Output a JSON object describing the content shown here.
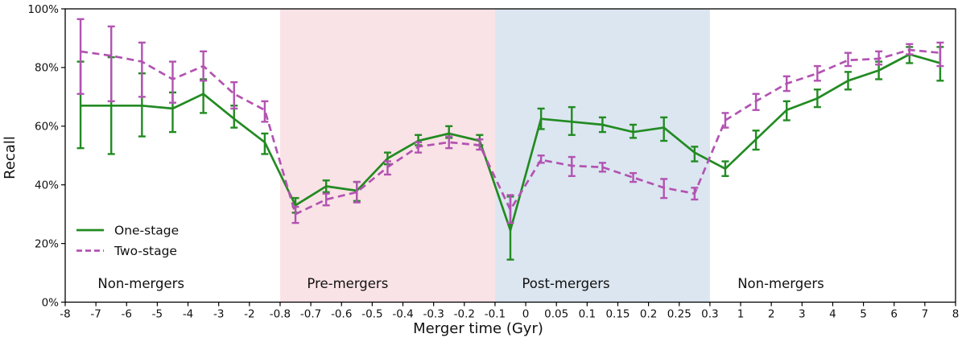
{
  "chart_data": {
    "type": "line",
    "title": "",
    "xlabel": "Merger time (Gyr)",
    "ylabel": "Recall",
    "ylim": [
      0,
      100
    ],
    "y_ticks": [
      0,
      20,
      40,
      60,
      80,
      100
    ],
    "y_tick_labels": [
      "0%",
      "20%",
      "40%",
      "60%",
      "80%",
      "100%"
    ],
    "x_tick_labels": [
      "-8",
      "-7",
      "-6",
      "-5",
      "-4",
      "-3",
      "-2",
      "-0.8",
      "-0.7",
      "-0.6",
      "-0.5",
      "-0.4",
      "-0.3",
      "-0.2",
      "-0.1",
      "0",
      "0.05",
      "0.1",
      "0.15",
      "0.2",
      "0.25",
      "0.3",
      "1",
      "2",
      "3",
      "4",
      "5",
      "6",
      "7",
      "8"
    ],
    "points_located_at": "midpoints between consecutive x ticks",
    "grid": false,
    "legend_position": "lower left, no frame",
    "regions": [
      {
        "label": "Non-mergers",
        "from_tick": 0,
        "to_tick": 7,
        "color": "#ffffff",
        "label_tick_pos": 2.47
      },
      {
        "label": "Pre-mergers",
        "from_tick": 7,
        "to_tick": 14,
        "color": "#fae3e6",
        "label_tick_pos": 9.2
      },
      {
        "label": "Post-mergers",
        "from_tick": 14,
        "to_tick": 21,
        "color": "#dce6f0",
        "label_tick_pos": 16.31
      },
      {
        "label": "Non-mergers",
        "from_tick": 21,
        "to_tick": 29,
        "color": "#ffffff",
        "label_tick_pos": 23.31
      }
    ],
    "series": [
      {
        "name": "One-stage",
        "color": "#228B22",
        "style": "solid",
        "values": [
          67,
          67,
          67,
          66,
          71,
          62.5,
          54.5,
          33,
          39.5,
          38,
          49,
          55,
          57.5,
          55,
          24.5,
          62.5,
          61.5,
          60.5,
          58,
          59.5,
          51,
          45.5,
          55.5,
          65.5,
          69.5,
          75.5,
          79,
          84.5,
          81.5
        ],
        "err_low": [
          52.5,
          50.5,
          56.5,
          58,
          64.5,
          59.5,
          50.5,
          30.5,
          37.5,
          34.5,
          47,
          53.5,
          56,
          53.5,
          14.5,
          59,
          57,
          58,
          56,
          55,
          48,
          43,
          52,
          62,
          66.5,
          72.5,
          76,
          81.5,
          75.5
        ],
        "err_high": [
          82,
          83.5,
          78,
          71.5,
          76,
          67,
          57.5,
          35.5,
          41.5,
          41,
          51,
          57,
          60,
          57,
          36,
          66,
          66.5,
          63,
          60.5,
          63,
          53,
          48,
          58.5,
          68.5,
          72.5,
          78.5,
          82,
          87,
          87
        ]
      },
      {
        "name": "Two-stage",
        "color": "#b253b2",
        "style": "dashed",
        "values": [
          85.5,
          84,
          82,
          76,
          80.5,
          71,
          65.5,
          30,
          35,
          37.5,
          46,
          53,
          54.5,
          53.5,
          31.5,
          48.5,
          46.5,
          46,
          42.5,
          39,
          37,
          62,
          68.5,
          74.5,
          78,
          82.5,
          83,
          86,
          85
        ],
        "err_low": [
          71,
          68.5,
          70,
          68,
          75.5,
          66,
          61.5,
          27,
          33,
          34,
          43.5,
          51,
          52.5,
          52,
          27,
          47.5,
          43,
          44.5,
          41,
          35.5,
          35,
          59.5,
          65.5,
          72,
          75.5,
          80.5,
          81,
          84.5,
          80.5
        ],
        "err_high": [
          96.5,
          94,
          88.5,
          82,
          85.5,
          75,
          68.5,
          32.5,
          37,
          41,
          48,
          54.5,
          56.5,
          55.5,
          36.5,
          50,
          49.5,
          47.5,
          44,
          42,
          39,
          64.5,
          71,
          77,
          80.5,
          85,
          85.5,
          88,
          88.5
        ]
      }
    ],
    "legend": {
      "items": [
        {
          "label": "One-stage",
          "color": "#228B22",
          "style": "solid"
        },
        {
          "label": "Two-stage",
          "color": "#b253b2",
          "style": "dashed"
        }
      ]
    },
    "colors": {
      "one_stage": "#228B22",
      "two_stage": "#b253b2",
      "pre_merger_shade": "#fae3e6",
      "post_merger_shade": "#dce6f0",
      "axis": "#000000",
      "text": "#111111"
    }
  }
}
